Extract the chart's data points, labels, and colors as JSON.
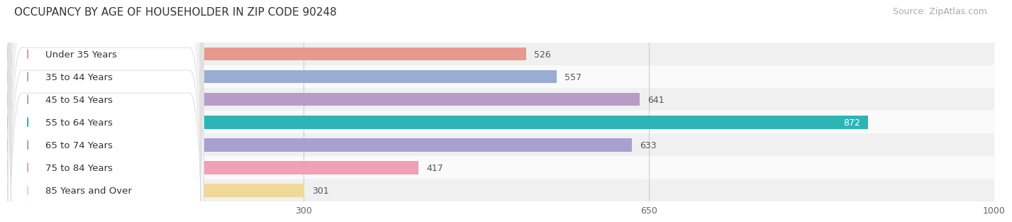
{
  "title": "OCCUPANCY BY AGE OF HOUSEHOLDER IN ZIP CODE 90248",
  "source": "Source: ZipAtlas.com",
  "categories": [
    "Under 35 Years",
    "35 to 44 Years",
    "45 to 54 Years",
    "55 to 64 Years",
    "65 to 74 Years",
    "75 to 84 Years",
    "85 Years and Over"
  ],
  "values": [
    526,
    557,
    641,
    872,
    633,
    417,
    301
  ],
  "bar_colors": [
    "#e8998d",
    "#9aabd4",
    "#b89cc8",
    "#2db5b5",
    "#a8a0d0",
    "#f0a0b8",
    "#f0d898"
  ],
  "dot_colors": [
    "#e8998d",
    "#9aabd4",
    "#b89cc8",
    "#2db5b5",
    "#a8a0d0",
    "#f0a0b8",
    "#f0d898"
  ],
  "value_label_color_default": "#555555",
  "value_label_color_highlight": "#ffffff",
  "highlight_index": 3,
  "xlim": [
    0,
    1000
  ],
  "xticks": [
    300,
    650,
    1000
  ],
  "title_fontsize": 11,
  "source_fontsize": 9,
  "label_fontsize": 9.5,
  "value_fontsize": 9,
  "bar_height": 0.58,
  "background_color": "#ffffff",
  "row_bg_colors": [
    "#f0f0f0",
    "#fafafa"
  ],
  "pill_bg": "#ffffff",
  "pill_border": "#e0e0e0"
}
